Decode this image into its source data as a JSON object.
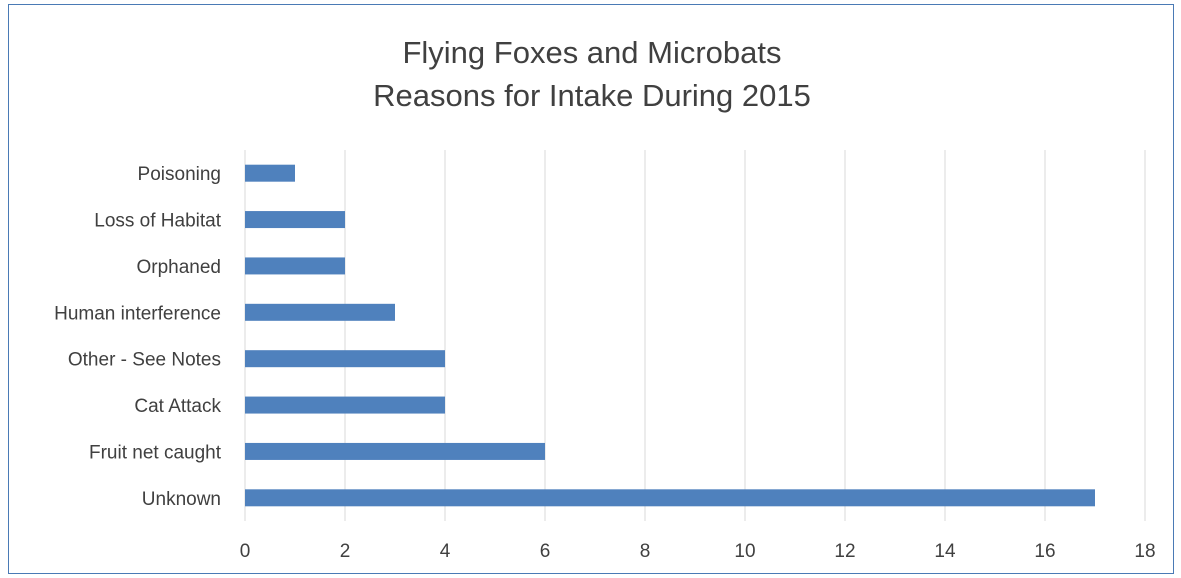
{
  "chart_data": {
    "type": "bar",
    "orientation": "horizontal",
    "title": [
      "Flying Foxes and Microbats",
      "Reasons for Intake During 2015"
    ],
    "categories": [
      "Poisoning",
      "Loss of Habitat",
      "Orphaned",
      "Human interference",
      "Other - See Notes",
      "Cat Attack",
      "Fruit net caught",
      "Unknown"
    ],
    "values": [
      1,
      2,
      2,
      3,
      4,
      4,
      6,
      17
    ],
    "xlim": [
      0,
      18
    ],
    "xticks": [
      "0",
      "2",
      "4",
      "6",
      "8",
      "10",
      "12",
      "14",
      "16",
      "18"
    ],
    "xlabel": "",
    "ylabel": "",
    "grid": "vertical",
    "bar_color": "#4f81bd",
    "grid_color": "#d9d9d9"
  }
}
